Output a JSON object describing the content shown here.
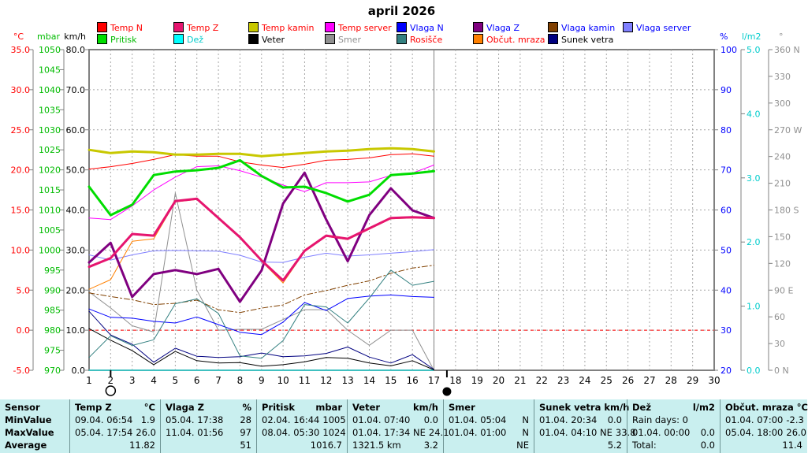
{
  "title": "april 2026",
  "legend": {
    "x_positions": [
      123,
      220,
      315,
      412,
      503,
      600,
      695,
      790
    ],
    "row1": [
      {
        "label": "Temp N",
        "swatch": "#FF0000",
        "text": "#FF0000"
      },
      {
        "label": "Temp Z",
        "swatch": "#E6156F",
        "text": "#FF0000"
      },
      {
        "label": "Temp kamin",
        "swatch": "#C8C800",
        "text": "#FF0000"
      },
      {
        "label": "Temp server",
        "swatch": "#FF00FF",
        "text": "#FF0000"
      },
      {
        "label": "Vlaga N",
        "swatch": "#0000FF",
        "text": "#0000FF"
      },
      {
        "label": "Vlaga Z",
        "swatch": "#800080",
        "text": "#0000FF"
      },
      {
        "label": "Vlaga kamin",
        "swatch": "#804000",
        "text": "#0000FF"
      },
      {
        "label": "Vlaga server",
        "swatch": "#8080FF",
        "text": "#0000FF"
      }
    ],
    "row2": [
      {
        "label": "Pritisk",
        "swatch": "#00DD00",
        "text": "#00BB00"
      },
      {
        "label": "Dež",
        "swatch": "#00FFFF",
        "text": "#00CCCC"
      },
      {
        "label": "Veter",
        "swatch": "#000000",
        "text": "#000000"
      },
      {
        "label": "Smer",
        "swatch": "#909090",
        "text": "#909090"
      },
      {
        "label": "Rosišče",
        "swatch": "#338080",
        "text": "#FF0000"
      },
      {
        "label": "Občut. mraza",
        "swatch": "#FF8000",
        "text": "#FF0000"
      },
      {
        "label": "Sunek vetra",
        "swatch": "#000080",
        "text": "#000000"
      }
    ]
  },
  "axes": {
    "celsius": {
      "header": "°C",
      "color": "#FF0000",
      "min": -5,
      "max": 35,
      "ticks": [
        "35.0",
        "30.0",
        "25.0",
        "20.0",
        "15.0",
        "10.0",
        "5.0",
        "0.0",
        "-5.0"
      ]
    },
    "mbar": {
      "header": "mbar",
      "color": "#00BB00",
      "min": 970,
      "max": 1050,
      "ticks": [
        "1050",
        "1045",
        "1040",
        "1035",
        "1030",
        "1025",
        "1020",
        "1015",
        "1010",
        "1005",
        "1000",
        "995",
        "990",
        "985",
        "980",
        "975",
        "970"
      ]
    },
    "kmh": {
      "header": "km/h",
      "color": "#000000",
      "min": 0,
      "max": 80,
      "ticks": [
        "80.0",
        "70.0",
        "60.0",
        "50.0",
        "40.0",
        "30.0",
        "20.0",
        "10.0",
        "0.0"
      ]
    },
    "percent": {
      "header": "%",
      "color": "#0000FF",
      "min": 20,
      "max": 100,
      "ticks": [
        "100",
        "90",
        "80",
        "70",
        "60",
        "50",
        "40",
        "30",
        "20"
      ]
    },
    "lm2": {
      "header": "l/m2",
      "color": "#00CCCC",
      "min": 0,
      "max": 5,
      "ticks": [
        "5.0",
        "4.0",
        "3.0",
        "2.0",
        "1.0",
        "0.0"
      ]
    },
    "degrees": {
      "header": "°",
      "color": "#909090",
      "min": 0,
      "max": 360,
      "ticks": [
        "360 N",
        "330",
        "300",
        "270 W",
        "240",
        "210",
        "180 S",
        "150",
        "120",
        "90 E",
        "60",
        "30",
        "0 N"
      ]
    }
  },
  "x_axis": {
    "days": [
      "1",
      "2",
      "3",
      "4",
      "5",
      "6",
      "7",
      "8",
      "9",
      "10",
      "11",
      "12",
      "13",
      "14",
      "15",
      "16",
      "17",
      "18",
      "19",
      "20",
      "21",
      "22",
      "23",
      "24",
      "25",
      "26",
      "27",
      "28",
      "29",
      "30"
    ],
    "data_end_day": 17,
    "full_moon_day": 2,
    "new_moon_day": 17.6
  },
  "chart_data": {
    "type": "line",
    "title": "april 2026",
    "x": [
      1,
      2,
      3,
      4,
      5,
      6,
      7,
      8,
      9,
      10,
      11,
      12,
      13,
      14,
      15,
      16,
      17
    ],
    "x_range": [
      1,
      30
    ],
    "grid": "dashed gray, vertical per day, horizontal per 10 km/h",
    "freeze_line": {
      "axis": "celsius",
      "value": 0,
      "color": "#FF0000",
      "style": "dashed"
    },
    "axis_ranges": {
      "celsius": [
        -5,
        35
      ],
      "mbar": [
        970,
        1050
      ],
      "kmh": [
        0,
        80
      ],
      "percent": [
        20,
        100
      ],
      "lm2": [
        0,
        5
      ],
      "degrees": [
        0,
        360
      ]
    },
    "series": [
      {
        "name": "Dež",
        "axis": "lm2",
        "color": "#00FFFF",
        "width": 1,
        "values": [
          0,
          0,
          0,
          0,
          0,
          0,
          0,
          0,
          0,
          0,
          0,
          0,
          0,
          0,
          0,
          0,
          0
        ]
      },
      {
        "name": "Smer",
        "axis": "degrees",
        "color": "#909090",
        "width": 1,
        "values": [
          88,
          70,
          50,
          43,
          199,
          90,
          45,
          46,
          46,
          57,
          68,
          68,
          45,
          28,
          45,
          45,
          0
        ]
      },
      {
        "name": "Vlaga kamin",
        "axis": "percent",
        "color": "#804000",
        "width": 1,
        "dash": "7,3,2,3",
        "values": [
          39.3,
          38.4,
          37.6,
          36.4,
          36.7,
          37.5,
          35.1,
          34.4,
          35.5,
          36.3,
          38.8,
          39.9,
          41.2,
          42.3,
          44.2,
          45.5,
          46.2
        ]
      },
      {
        "name": "Vlaga server",
        "axis": "percent",
        "color": "#8080FF",
        "width": 1,
        "values": [
          48.8,
          47.5,
          48.8,
          49.8,
          49.9,
          49.8,
          49.7,
          48.7,
          47.0,
          46.9,
          48.2,
          49.2,
          48.5,
          48.8,
          49.2,
          49.6,
          50.1
        ]
      },
      {
        "name": "Vlaga N",
        "axis": "percent",
        "color": "#0000FF",
        "width": 1,
        "values": [
          35.3,
          33.2,
          33.0,
          32.2,
          31.8,
          33.3,
          31.4,
          29.5,
          28.9,
          32.0,
          36.9,
          34.9,
          37.9,
          38.5,
          38.8,
          38.4,
          38.2
        ]
      },
      {
        "name": "Sunek vetra",
        "axis": "kmh",
        "color": "#000080",
        "width": 1,
        "values": [
          14.7,
          8.8,
          6.5,
          2.0,
          5.5,
          3.5,
          3.2,
          3.4,
          4.3,
          3.4,
          3.6,
          4.2,
          5.8,
          3.3,
          1.8,
          3.9,
          0.2
        ]
      },
      {
        "name": "Veter",
        "axis": "kmh",
        "color": "#000000",
        "width": 1,
        "values": [
          10.4,
          7.5,
          4.9,
          1.4,
          4.7,
          2.4,
          1.8,
          1.9,
          1.0,
          1.4,
          2.1,
          3.2,
          3.0,
          1.8,
          1.1,
          2.4,
          0.1
        ]
      },
      {
        "name": "Rosišče",
        "axis": "celsius",
        "color": "#338080",
        "width": 1,
        "values": [
          -3.4,
          -0.7,
          -1.9,
          -1.2,
          3.3,
          3.9,
          2.1,
          -3.2,
          -3.5,
          -1.3,
          3.2,
          2.9,
          0.9,
          4.0,
          7.5,
          5.6,
          6.1
        ]
      },
      {
        "name": "Občut. mraza",
        "axis": "celsius",
        "color": "#FF8000",
        "width": 1,
        "values": [
          5.1,
          6.3,
          11.1,
          11.4,
          16.0,
          16.3,
          13.9,
          11.5,
          8.6,
          5.9,
          9.8,
          11.7,
          11.3,
          12.6,
          13.9,
          14.0,
          14.0
        ]
      },
      {
        "name": "Temp server",
        "axis": "celsius",
        "color": "#FF00FF",
        "width": 1,
        "values": [
          14.0,
          13.8,
          15.5,
          17.5,
          19.1,
          20.4,
          20.5,
          19.9,
          19.1,
          18.1,
          17.3,
          18.4,
          18.4,
          18.5,
          19.3,
          19.6,
          20.6
        ]
      },
      {
        "name": "Temp N",
        "axis": "celsius",
        "color": "#FF0000",
        "width": 1,
        "values": [
          20.1,
          20.4,
          20.8,
          21.3,
          21.9,
          21.7,
          21.7,
          21.0,
          20.6,
          20.3,
          20.7,
          21.2,
          21.3,
          21.5,
          21.9,
          22.0,
          21.7
        ]
      },
      {
        "name": "Vlaga Z",
        "axis": "percent",
        "color": "#800080",
        "width": 3,
        "values": [
          46.9,
          51.8,
          38.3,
          44.0,
          45.0,
          44.0,
          45.3,
          37.1,
          44.9,
          61.6,
          69.3,
          57.6,
          47.2,
          58.7,
          65.4,
          59.9,
          58.0
        ]
      },
      {
        "name": "Pritisk",
        "axis": "mbar",
        "color": "#00DD00",
        "width": 3,
        "values": [
          1015.8,
          1008.7,
          1011.3,
          1018.7,
          1019.6,
          1019.9,
          1020.5,
          1022.4,
          1018.5,
          1015.6,
          1015.8,
          1014.2,
          1012.1,
          1013.8,
          1018.7,
          1019.1,
          1019.7
        ]
      },
      {
        "name": "Temp Z",
        "axis": "celsius",
        "color": "#E6156F",
        "width": 3,
        "values": [
          7.9,
          9.0,
          12.0,
          11.8,
          16.1,
          16.4,
          14.0,
          11.6,
          8.7,
          6.2,
          9.9,
          11.8,
          11.4,
          12.7,
          14.0,
          14.1,
          14.0
        ]
      },
      {
        "name": "Temp kamin",
        "axis": "celsius",
        "color": "#C8C800",
        "width": 3,
        "values": [
          22.5,
          22.1,
          22.3,
          22.2,
          21.9,
          21.9,
          22.0,
          22.0,
          21.7,
          21.9,
          22.1,
          22.3,
          22.4,
          22.6,
          22.7,
          22.6,
          22.3
        ]
      }
    ]
  },
  "table": {
    "background": "#C9EFEF",
    "sensor_col": {
      "width": 88,
      "rows": [
        "Sensor",
        "MinValue",
        "MaxValue",
        "Average"
      ]
    },
    "columns": [
      {
        "header": "Temp Z",
        "unit": "°C",
        "width": 115,
        "min_when": "09.04.  06:54",
        "min_value": "1.9",
        "max_when": "05.04.  17:54",
        "max_value": "26.0",
        "avg_when": "",
        "avg_value": "11.82"
      },
      {
        "header": "Vlaga Z",
        "unit": "%",
        "width": 122,
        "min_when": "05.04.  17:38",
        "min_value": "28",
        "max_when": "11.04.  01:56",
        "max_value": "97",
        "avg_when": "",
        "avg_value": "51"
      },
      {
        "header": "Pritisk",
        "unit": "mbar",
        "width": 115,
        "min_when": "02.04.  16:44",
        "min_value": "1005",
        "max_when": "08.04.  05:30",
        "max_value": "1024",
        "avg_when": "",
        "avg_value": "1016.7"
      },
      {
        "header": "Veter",
        "unit": "km/h",
        "width": 122,
        "min_when": "01.04.  07:40",
        "min_value": "0.0",
        "max_when": "01.04.  17:34 NE",
        "max_value": "24.1",
        "avg_when": "1321.5 km",
        "avg_value": "3.2"
      },
      {
        "header": "Smer",
        "unit": "",
        "width": 115,
        "min_when": "01.04.  05:04",
        "min_value": "N",
        "max_when": "01.04.  01:00",
        "max_value": "N",
        "avg_when": "",
        "avg_value": "NE"
      },
      {
        "header": "Sunek vetra",
        "unit": "km/h",
        "width": 118,
        "min_when": "01.04.  20:34",
        "min_value": "0.0",
        "max_when": "01.04.  04:10 NE",
        "max_value": "33.8",
        "avg_when": "",
        "avg_value": "5.2"
      },
      {
        "header": "Dež",
        "unit": "l/m2",
        "width": 118,
        "min_when": "Rain days: 0",
        "min_value": "",
        "max_when": "01.04.  00:00",
        "max_value": "0.0",
        "avg_when": "Total:",
        "avg_value": "0.0"
      },
      {
        "header": "Občut. mraza",
        "unit": "°C",
        "width": 111,
        "min_when": "01.04.  07:00",
        "min_value": "-2.3",
        "max_when": "05.04.  18:00",
        "max_value": "26.0",
        "avg_when": "",
        "avg_value": "11.4"
      }
    ]
  }
}
